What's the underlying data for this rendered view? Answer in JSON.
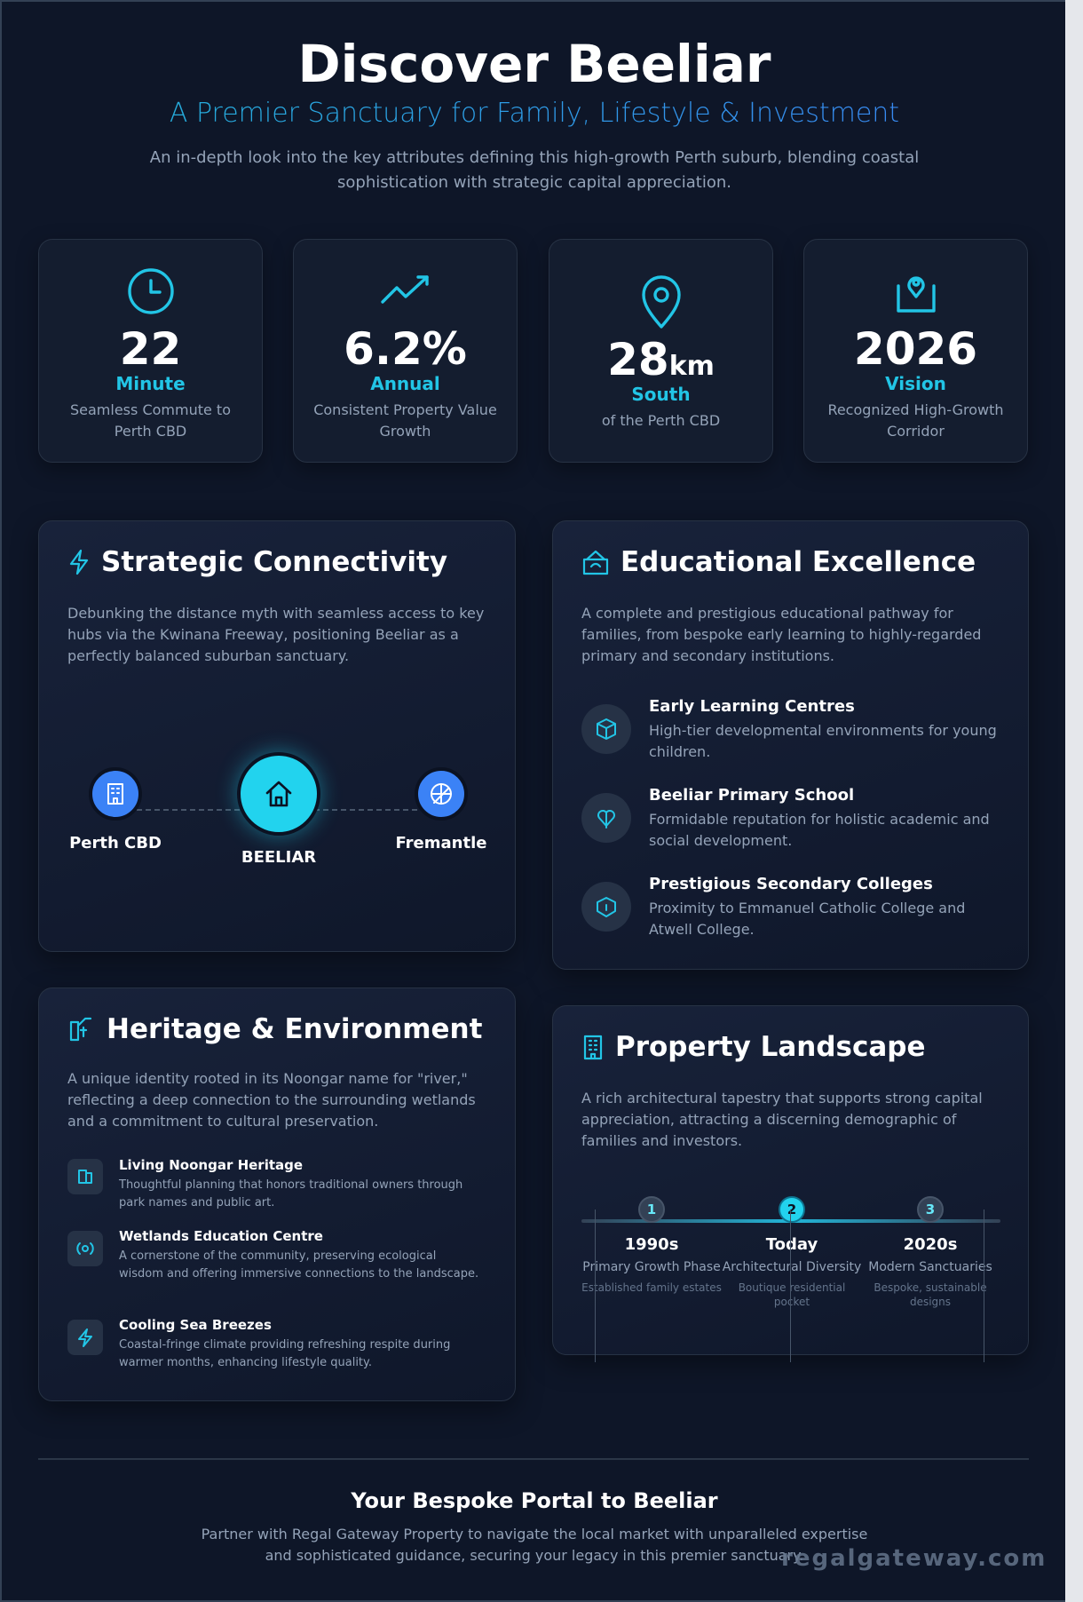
{
  "header": {
    "title": "Discover Beeliar",
    "subtitle": "A Premier Sanctuary for Family, Lifestyle & Investment",
    "description": "An in-depth look into the key attributes defining this high-growth Perth suburb, blending coastal sophistication with strategic capital appreciation."
  },
  "stats": [
    {
      "icon": "clock-icon",
      "value": "22",
      "unit": "",
      "label": "Minute",
      "text": "Seamless Commute to Perth CBD"
    },
    {
      "icon": "trending-up-icon",
      "value": "6.2%",
      "unit": "",
      "label": "Annual",
      "text": "Consistent Property Value Growth"
    },
    {
      "icon": "map-pin-icon",
      "value": "28",
      "unit": "km",
      "label": "South",
      "text": "of the Perth CBD"
    },
    {
      "icon": "location-inbox-icon",
      "value": "2026",
      "unit": "",
      "label": "Vision",
      "text": "Recognized High-Growth Corridor"
    }
  ],
  "connectivity": {
    "title": "Strategic Connectivity",
    "body": "Debunking the distance myth with seamless access to key hubs via the Kwinana Freeway, positioning Beeliar as a perfectly balanced suburban sanctuary.",
    "nodes": {
      "left": "Perth CBD",
      "center": "BEELIAR",
      "right": "Fremantle"
    }
  },
  "education": {
    "title": "Educational Excellence",
    "body": "A complete and prestigious educational pathway for families, from bespoke early learning to highly-regarded primary and secondary institutions.",
    "items": [
      {
        "title": "Early Learning Centres",
        "desc": "High-tier developmental environments for young children."
      },
      {
        "title": "Beeliar Primary School",
        "desc": "Formidable reputation for holistic academic and social development."
      },
      {
        "title": "Prestigious Secondary Colleges",
        "desc": "Proximity to Emmanuel Catholic College and Atwell College."
      }
    ]
  },
  "heritage": {
    "title": "Heritage & Environment",
    "body": "A unique identity rooted in its Noongar name for \"river,\" reflecting a deep connection to the surrounding wetlands and a commitment to cultural preservation.",
    "items": [
      {
        "title": "Living Noongar Heritage",
        "desc": "Thoughtful planning that honors traditional owners through park names and public art."
      },
      {
        "title": "Wetlands Education Centre",
        "desc": "A cornerstone of the community, preserving ecological wisdom and offering immersive connections to the landscape."
      },
      {
        "title": "Cooling Sea Breezes",
        "desc": "Coastal-fringe climate providing refreshing respite during warmer months, enhancing lifestyle quality."
      }
    ]
  },
  "property": {
    "title": "Property Landscape",
    "body": "A rich architectural tapestry that supports strong capital appreciation, attracting a discerning demographic of families and investors.",
    "timeline": [
      {
        "step": "1",
        "era": "1990s",
        "label": "Primary Growth Phase",
        "note": "Established family estates"
      },
      {
        "step": "2",
        "era": "Today",
        "label": "Architectural Diversity",
        "note": "Boutique residential pocket"
      },
      {
        "step": "3",
        "era": "2020s",
        "label": "Modern Sanctuaries",
        "note": "Bespoke, sustainable designs"
      }
    ]
  },
  "footer": {
    "title": "Your Bespoke Portal to Beeliar",
    "text": "Partner with Regal Gateway Property to navigate the local market with unparalleled expertise and sophisticated guidance, securing your legacy in this premier sanctuary.",
    "watermark": "regalgateway.com"
  },
  "colors": {
    "accent": "#22c5e6",
    "blue": "#3b82f6",
    "background": "#0e1628",
    "card": "#141d2f"
  }
}
